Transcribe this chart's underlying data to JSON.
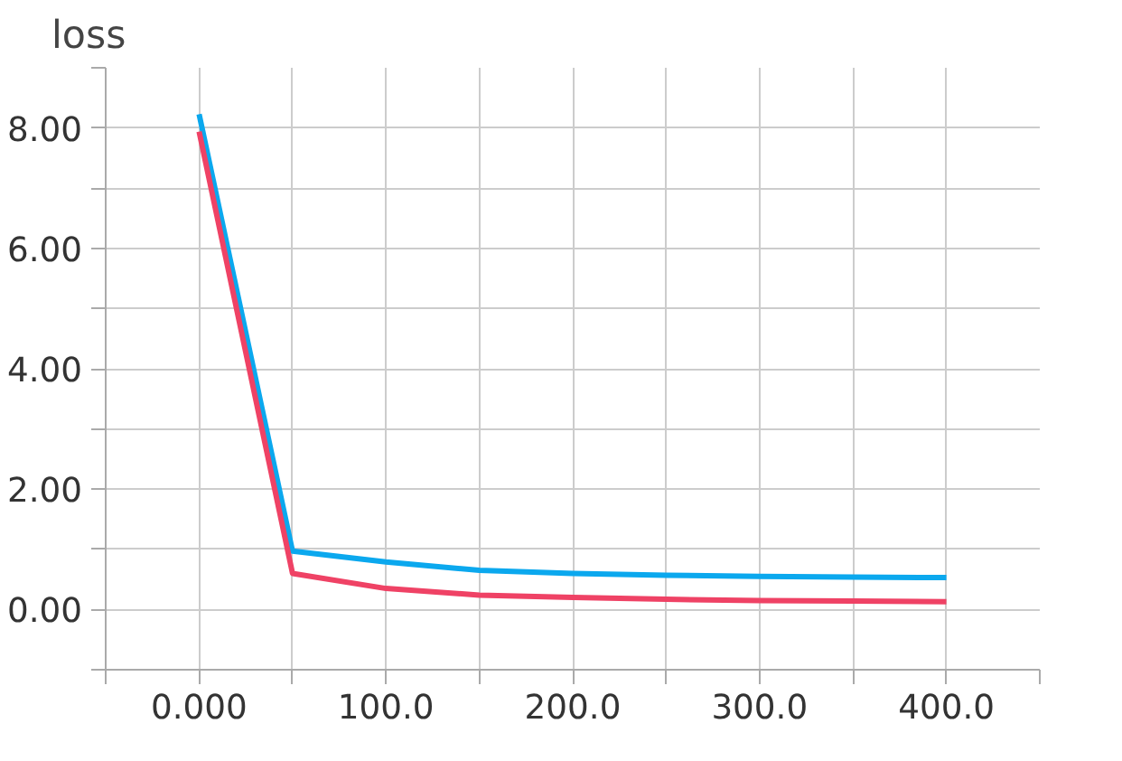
{
  "chart_data": {
    "type": "line",
    "title": "loss",
    "x": [
      0,
      50,
      100,
      150,
      200,
      250,
      300,
      350,
      400
    ],
    "series": [
      {
        "color": "#0ba8ee",
        "values": [
          8.23,
          0.97,
          0.79,
          0.65,
          0.6,
          0.57,
          0.55,
          0.54,
          0.53
        ]
      },
      {
        "color": "#ef4265",
        "values": [
          7.94,
          0.6,
          0.35,
          0.24,
          0.2,
          0.17,
          0.15,
          0.14,
          0.13
        ]
      }
    ],
    "xlim": [
      -50,
      450
    ],
    "ylim": [
      -1,
      9
    ],
    "xticks": [
      {
        "value": -50,
        "label": null
      },
      {
        "value": 0,
        "label": "0.000"
      },
      {
        "value": 50,
        "label": null
      },
      {
        "value": 100,
        "label": "100.0"
      },
      {
        "value": 150,
        "label": null
      },
      {
        "value": 200,
        "label": "200.0"
      },
      {
        "value": 250,
        "label": null
      },
      {
        "value": 300,
        "label": "300.0"
      },
      {
        "value": 350,
        "label": null
      },
      {
        "value": 400,
        "label": "400.0"
      },
      {
        "value": 450,
        "label": null
      }
    ],
    "yticks": [
      {
        "value": -1,
        "label": null
      },
      {
        "value": 0,
        "label": "0.00"
      },
      {
        "value": 1,
        "label": null
      },
      {
        "value": 2,
        "label": "2.00"
      },
      {
        "value": 3,
        "label": null
      },
      {
        "value": 4,
        "label": "4.00"
      },
      {
        "value": 5,
        "label": null
      },
      {
        "value": 6,
        "label": "6.00"
      },
      {
        "value": 7,
        "label": null
      },
      {
        "value": 8,
        "label": "8.00"
      },
      {
        "value": 9,
        "label": null
      }
    ],
    "grid": true,
    "line_style": "solid",
    "marker": "none"
  }
}
